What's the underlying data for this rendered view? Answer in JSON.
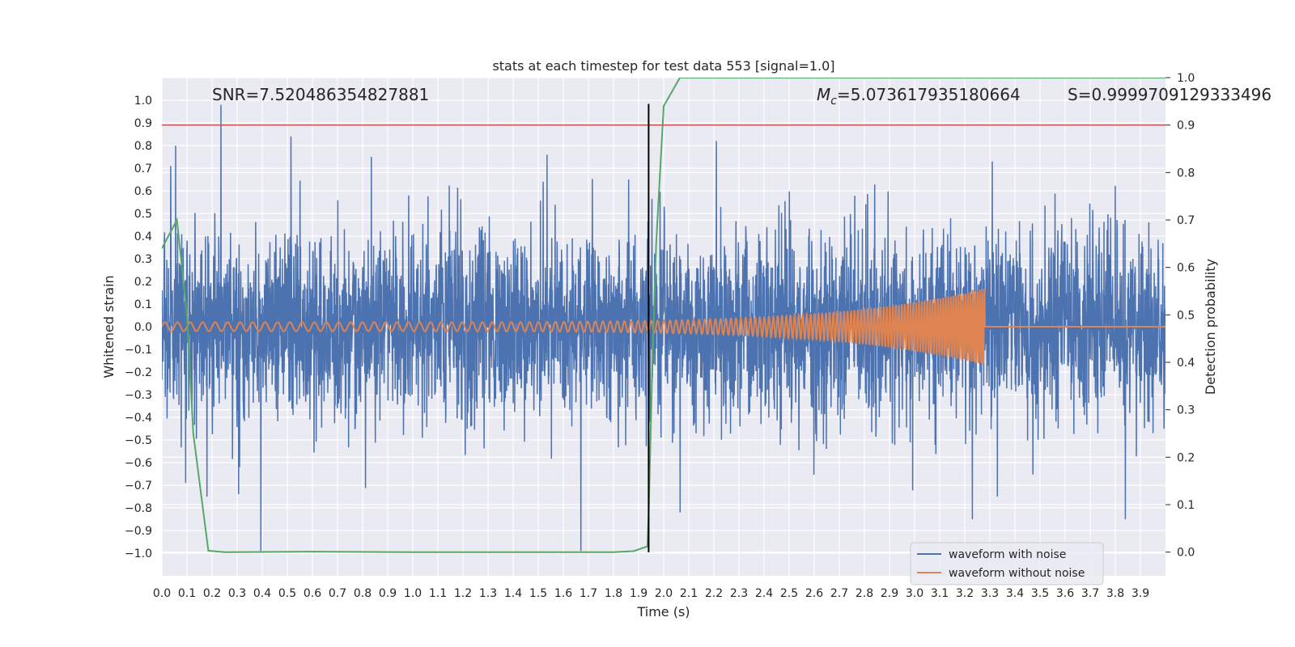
{
  "chart_data": {
    "type": "line",
    "title": "stats at each timestep for test data 553 [signal=1.0]",
    "xlabel": "Time (s)",
    "ylabel": "Whitened strain",
    "y2label": "Detection probability",
    "xlim": [
      0.0,
      4.0
    ],
    "ylim": [
      -1.1,
      1.1
    ],
    "y2lim": [
      -0.05,
      1.0
    ],
    "grid": true,
    "legend_position": "lower-right",
    "xticks": [
      0.0,
      0.1,
      0.2,
      0.3,
      0.4,
      0.5,
      0.6,
      0.7,
      0.8,
      0.9,
      1.0,
      1.1,
      1.2,
      1.3,
      1.4,
      1.5,
      1.6,
      1.7,
      1.8,
      1.9,
      2.0,
      2.1,
      2.2,
      2.3,
      2.4,
      2.5,
      2.6,
      2.7,
      2.8,
      2.9,
      3.0,
      3.1,
      3.2,
      3.3,
      3.4,
      3.5,
      3.6,
      3.7,
      3.8,
      3.9
    ],
    "xtick_labels": [
      "0.0",
      "0.1",
      "0.2",
      "0.3",
      "0.4",
      "0.5",
      "0.6",
      "0.7",
      "0.8",
      "0.9",
      "1.0",
      "1.1",
      "1.2",
      "1.3",
      "1.4",
      "1.5",
      "1.6",
      "1.7",
      "1.8",
      "1.9",
      "2.0",
      "2.1",
      "2.2",
      "2.3",
      "2.4",
      "2.5",
      "2.6",
      "2.7",
      "2.8",
      "2.9",
      "3.0",
      "3.1",
      "3.2",
      "3.3",
      "3.4",
      "3.5",
      "3.6",
      "3.7",
      "3.8",
      "3.9"
    ],
    "yticks": [
      1.0,
      0.9,
      0.8,
      0.7,
      0.6,
      0.5,
      0.4,
      0.3,
      0.2,
      0.1,
      0.0,
      -0.1,
      -0.2,
      -0.3,
      -0.4,
      -0.5,
      -0.6,
      -0.7,
      -0.8,
      -0.9,
      -1.0
    ],
    "ytick_labels": [
      "1.0",
      "0.9",
      "0.8",
      "0.7",
      "0.6",
      "0.5",
      "0.4",
      "0.3",
      "0.2",
      "0.1",
      "0.0",
      "−0.1",
      "−0.2",
      "−0.3",
      "−0.4",
      "−0.5",
      "−0.6",
      "−0.7",
      "−0.8",
      "−0.9",
      "−1.0"
    ],
    "y2ticks": [
      1.0,
      0.9,
      0.8,
      0.7,
      0.6,
      0.5,
      0.4,
      0.3,
      0.2,
      0.1,
      0.0
    ],
    "y2tick_labels": [
      "1.0",
      "0.9",
      "0.8",
      "0.7",
      "0.6",
      "0.5",
      "0.4",
      "0.3",
      "0.2",
      "0.1",
      "0.0"
    ],
    "annotations": {
      "snr": "SNR=7.520486354827881",
      "mc_symbol": "M",
      "mc_sub": "c",
      "mc_value": "=5.073617935180664",
      "s": "S=0.9999709129333496"
    },
    "series": [
      {
        "name": "waveform with noise",
        "axis": "left",
        "color": "#4c72b0",
        "kind": "noise",
        "sample_rate_hz": 1024,
        "std": 0.2,
        "spikes": [
          [
            0.01,
            0.37
          ],
          [
            0.035,
            0.71
          ],
          [
            0.055,
            0.8
          ],
          [
            0.095,
            -0.69
          ],
          [
            0.18,
            -0.75
          ],
          [
            0.235,
            0.98
          ],
          [
            0.31,
            -0.62
          ],
          [
            0.395,
            -0.99
          ],
          [
            0.515,
            0.84
          ],
          [
            0.835,
            0.75
          ],
          [
            1.52,
            0.64
          ],
          [
            1.535,
            0.76
          ],
          [
            1.67,
            -0.99
          ],
          [
            1.86,
            0.65
          ],
          [
            2.065,
            -0.82
          ],
          [
            2.21,
            0.82
          ],
          [
            3.31,
            0.73
          ],
          [
            3.23,
            -0.85
          ],
          [
            3.33,
            -0.75
          ],
          [
            3.84,
            -0.85
          ]
        ]
      },
      {
        "name": "waveform without noise",
        "axis": "left",
        "color": "#dd8452",
        "kind": "chirp",
        "amplitude_start": 0.02,
        "amplitude_end": 0.17,
        "frequency_start_hz": 20,
        "frequency_end_hz": 110,
        "merger_time": 3.28,
        "post_merger_value": 0.0
      },
      {
        "name": "Detection probability",
        "axis": "right",
        "color": "#55a868",
        "kind": "line",
        "x": [
          0.0,
          0.06,
          0.1,
          0.125,
          0.185,
          0.25,
          0.6,
          1.0,
          1.5,
          1.8,
          1.88,
          1.935,
          1.94,
          1.955,
          1.97,
          2.0,
          2.065,
          2.5,
          3.0,
          3.5,
          4.0
        ],
        "y": [
          0.64,
          0.7,
          0.5,
          0.25,
          0.003,
          0.0,
          0.001,
          0.0,
          0.0,
          0.0,
          0.002,
          0.012,
          0.08,
          0.4,
          0.65,
          0.94,
          1.0,
          1.0,
          1.0,
          1.0,
          1.0
        ]
      }
    ],
    "hlines": [
      {
        "name": "threshold",
        "axis": "right",
        "y": 0.9,
        "color": "#c44e52"
      }
    ],
    "vlines": [
      {
        "name": "detection-time",
        "x": 1.94,
        "y_from": -0.996,
        "y_to": 0.984,
        "color": "#000000"
      }
    ]
  }
}
